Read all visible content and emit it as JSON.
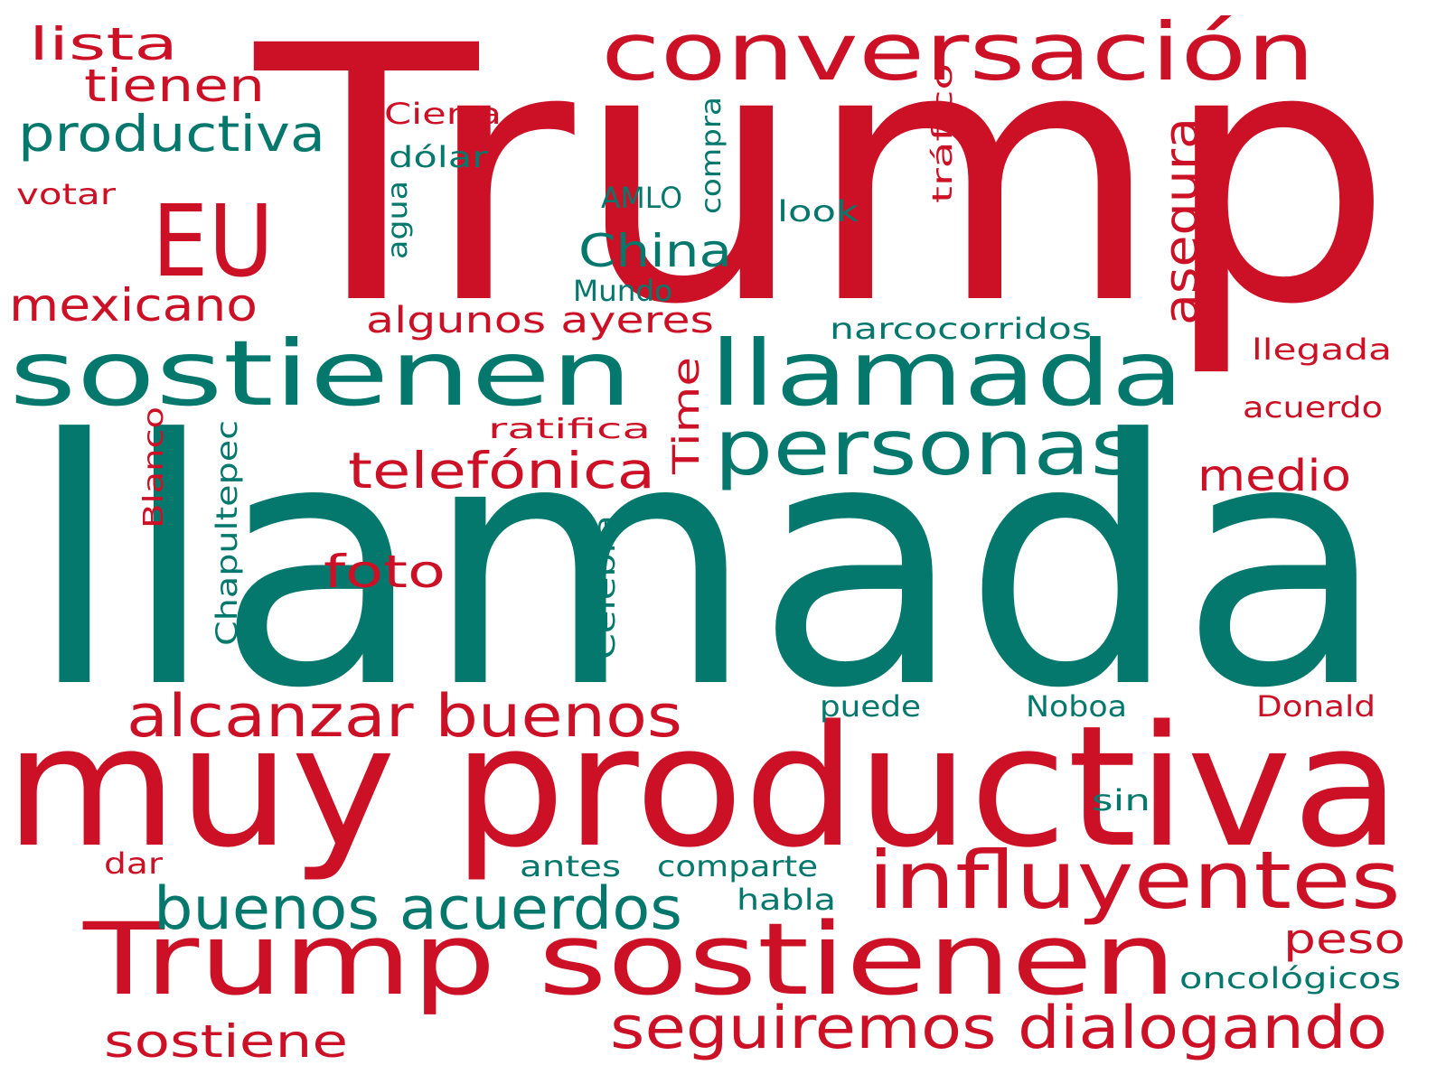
{
  "colors": {
    "red": "#cc1126",
    "green": "#05786d",
    "background": "#ffffff"
  },
  "words": [
    {
      "text": "Trump",
      "color": "red"
    },
    {
      "text": "llamada",
      "color": "green"
    },
    {
      "text": "muy productiva",
      "color": "red"
    },
    {
      "text": "sostienen",
      "color": "green"
    },
    {
      "text": "llamada",
      "color": "green"
    },
    {
      "text": "conversación",
      "color": "red"
    },
    {
      "text": "Trump sostienen",
      "color": "red"
    },
    {
      "text": "EU",
      "color": "red"
    },
    {
      "text": "personas",
      "color": "green"
    },
    {
      "text": "influyentes",
      "color": "red"
    },
    {
      "text": "seguiremos dialogando",
      "color": "red"
    },
    {
      "text": "alcanzar buenos",
      "color": "red"
    },
    {
      "text": "buenos acuerdos",
      "color": "green"
    },
    {
      "text": "productiva",
      "color": "green"
    },
    {
      "text": "telefónica",
      "color": "red"
    },
    {
      "text": "asegura",
      "color": "red"
    },
    {
      "text": "sostiene",
      "color": "red"
    },
    {
      "text": "mexicano",
      "color": "red"
    },
    {
      "text": "China",
      "color": "green"
    },
    {
      "text": "tienen",
      "color": "red"
    },
    {
      "text": "lista",
      "color": "red"
    },
    {
      "text": "foto",
      "color": "red"
    },
    {
      "text": "medio",
      "color": "red"
    },
    {
      "text": "algunos ayeres",
      "color": "red"
    },
    {
      "text": "Time",
      "color": "red"
    },
    {
      "text": "peso",
      "color": "red"
    },
    {
      "text": "Chapultepec",
      "color": "green"
    },
    {
      "text": "Celebra",
      "color": "green"
    },
    {
      "text": "Blanco",
      "color": "red"
    },
    {
      "text": "narcocorridos",
      "color": "green"
    },
    {
      "text": "tráfico",
      "color": "red"
    },
    {
      "text": "compra",
      "color": "green"
    },
    {
      "text": "Cierra",
      "color": "red"
    },
    {
      "text": "dólar",
      "color": "green"
    },
    {
      "text": "AMLO",
      "color": "green"
    },
    {
      "text": "look",
      "color": "green"
    },
    {
      "text": "Mundo",
      "color": "green"
    },
    {
      "text": "agua",
      "color": "green"
    },
    {
      "text": "votar",
      "color": "red"
    },
    {
      "text": "llegada",
      "color": "red"
    },
    {
      "text": "acuerdo",
      "color": "red"
    },
    {
      "text": "ratifica",
      "color": "red"
    },
    {
      "text": "puede",
      "color": "green"
    },
    {
      "text": "Noboa",
      "color": "green"
    },
    {
      "text": "Donald",
      "color": "red"
    },
    {
      "text": "sin",
      "color": "green"
    },
    {
      "text": "antes",
      "color": "green"
    },
    {
      "text": "comparte",
      "color": "green"
    },
    {
      "text": "habla",
      "color": "green"
    },
    {
      "text": "dar",
      "color": "red"
    },
    {
      "text": "oncológicos",
      "color": "green"
    }
  ]
}
